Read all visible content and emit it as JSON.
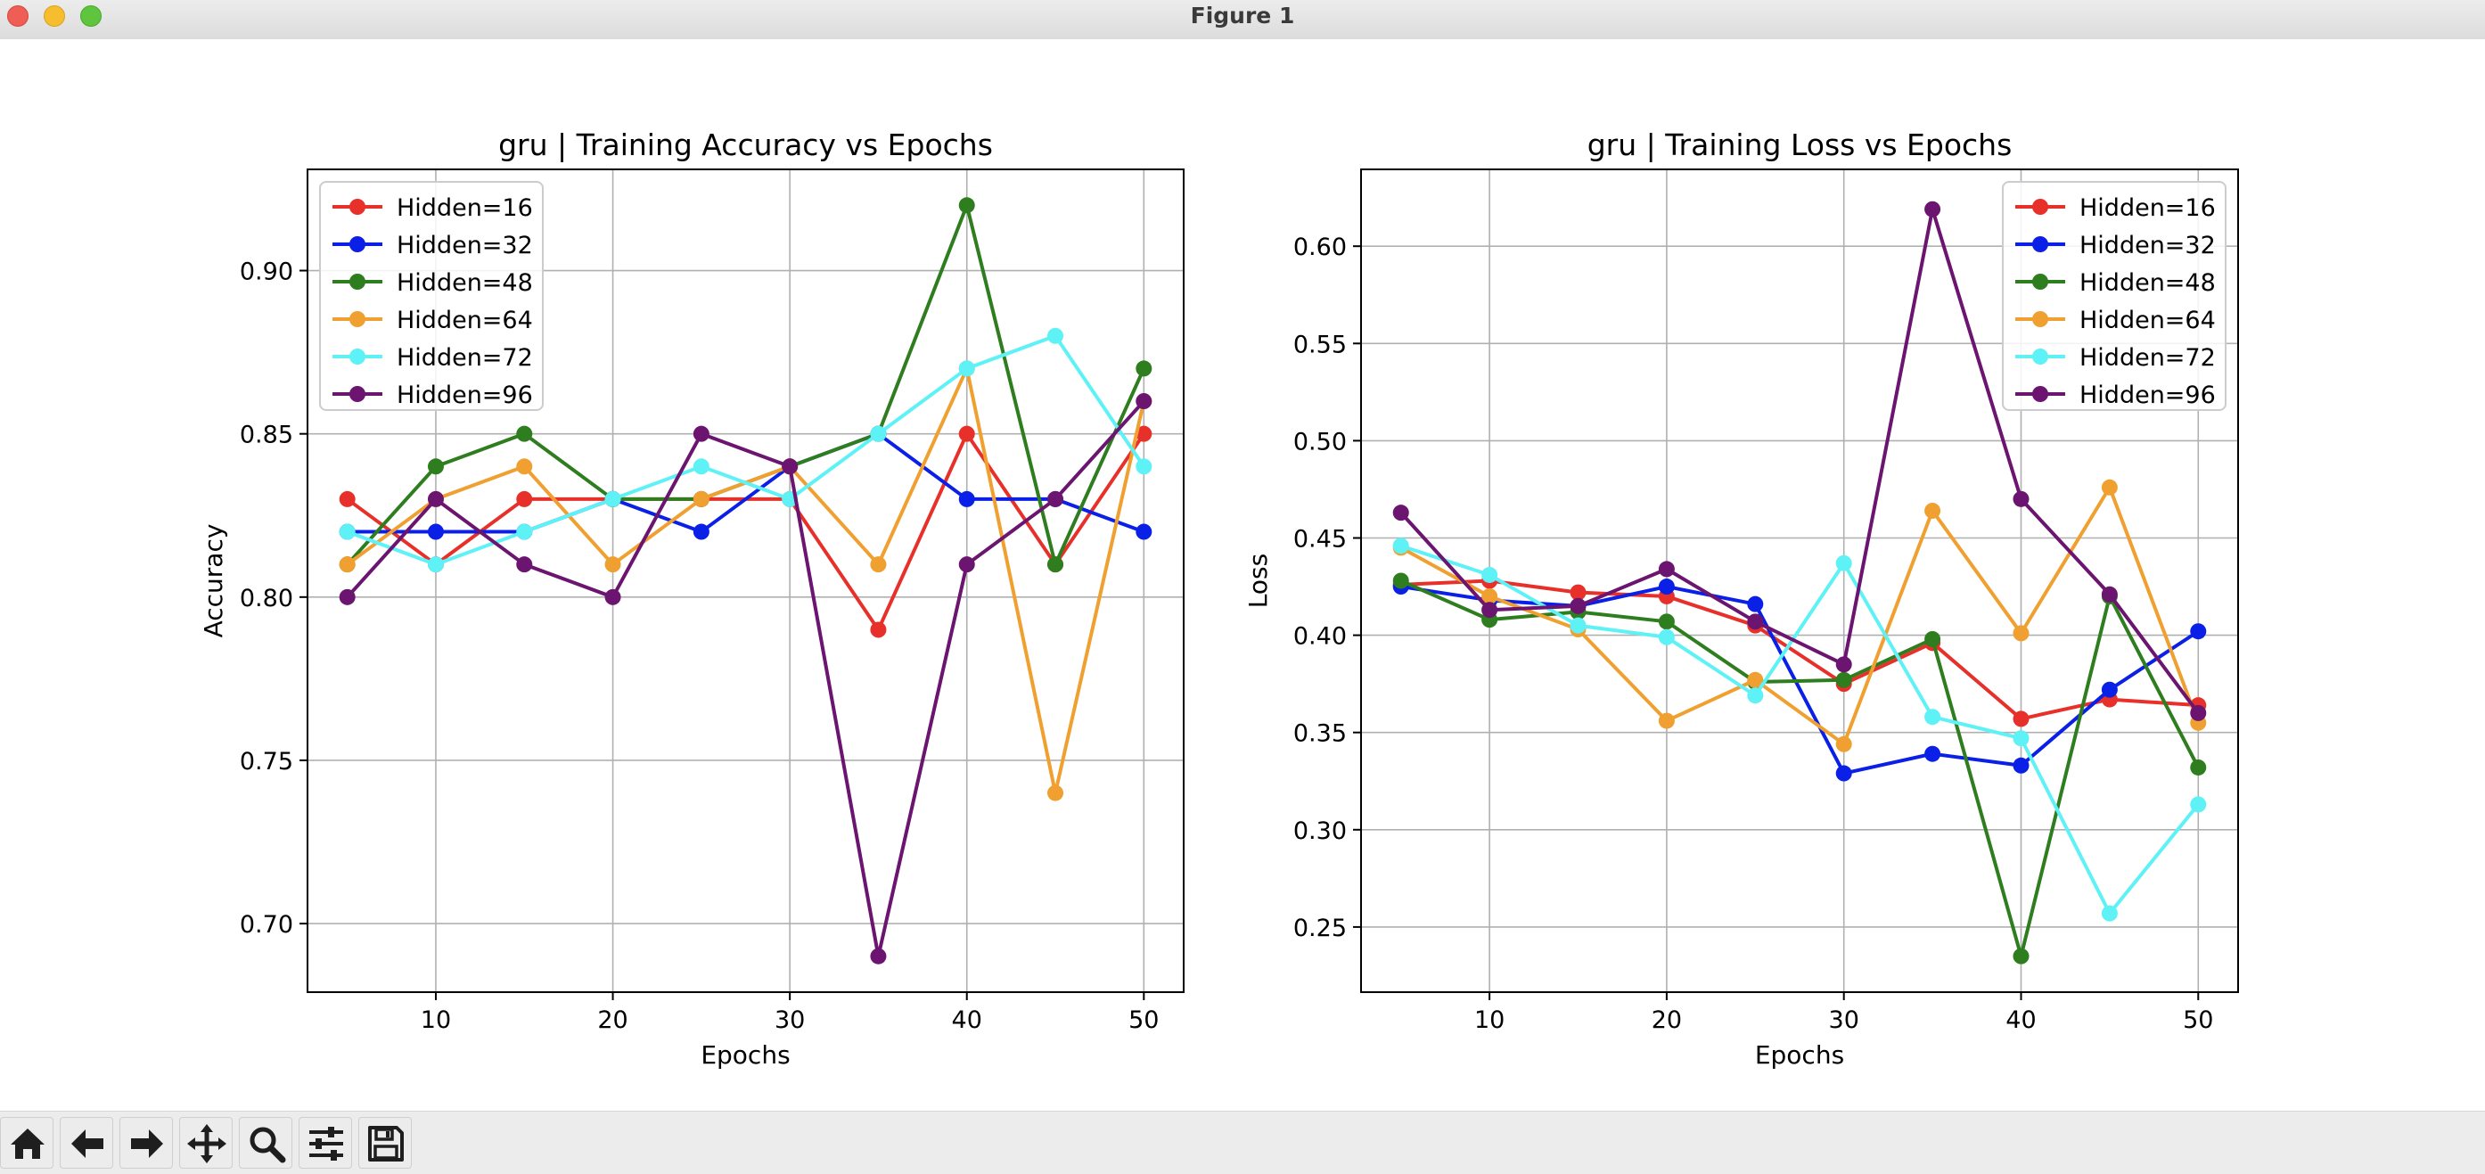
{
  "window": {
    "title": "Figure 1"
  },
  "toolbar": {
    "buttons": [
      {
        "id": "home",
        "icon": "home-icon"
      },
      {
        "id": "back",
        "icon": "arrow-left-icon"
      },
      {
        "id": "forward",
        "icon": "arrow-right-icon"
      },
      {
        "id": "pan",
        "icon": "move-icon"
      },
      {
        "id": "zoom",
        "icon": "search-icon"
      },
      {
        "id": "configure",
        "icon": "sliders-icon"
      },
      {
        "id": "save",
        "icon": "save-icon"
      }
    ]
  },
  "chart_data": [
    {
      "type": "line",
      "title": "gru | Training Accuracy vs Epochs",
      "xlabel": "Epochs",
      "ylabel": "Accuracy",
      "x": [
        5,
        10,
        15,
        20,
        25,
        30,
        35,
        40,
        45,
        50
      ],
      "xticks": [
        "10",
        "20",
        "30",
        "40",
        "50"
      ],
      "yticks": [
        "0.70",
        "0.75",
        "0.80",
        "0.85",
        "0.90"
      ],
      "xlim": [
        2.75,
        52.25
      ],
      "ylim": [
        0.679,
        0.931
      ],
      "grid": true,
      "legend": "upper left",
      "series": [
        {
          "name": "Hidden=16",
          "color": "#e8302a",
          "values": [
            0.83,
            0.81,
            0.83,
            0.83,
            0.83,
            0.83,
            0.79,
            0.85,
            0.81,
            0.85
          ]
        },
        {
          "name": "Hidden=32",
          "color": "#0a20e6",
          "values": [
            0.82,
            0.82,
            0.82,
            0.83,
            0.82,
            0.84,
            0.85,
            0.83,
            0.83,
            0.82
          ]
        },
        {
          "name": "Hidden=48",
          "color": "#2e7d1e",
          "values": [
            0.81,
            0.84,
            0.85,
            0.83,
            0.83,
            0.84,
            0.85,
            0.92,
            0.81,
            0.87
          ]
        },
        {
          "name": "Hidden=64",
          "color": "#f0a030",
          "values": [
            0.81,
            0.83,
            0.84,
            0.81,
            0.83,
            0.84,
            0.81,
            0.87,
            0.74,
            0.86
          ]
        },
        {
          "name": "Hidden=72",
          "color": "#5ef2f7",
          "values": [
            0.82,
            0.81,
            0.82,
            0.83,
            0.84,
            0.83,
            0.85,
            0.87,
            0.88,
            0.84
          ]
        },
        {
          "name": "Hidden=96",
          "color": "#6b1470",
          "values": [
            0.8,
            0.83,
            0.81,
            0.8,
            0.85,
            0.84,
            0.69,
            0.81,
            0.83,
            0.86
          ]
        }
      ]
    },
    {
      "type": "line",
      "title": "gru | Training Loss vs Epochs",
      "xlabel": "Epochs",
      "ylabel": "Loss",
      "x": [
        5,
        10,
        15,
        20,
        25,
        30,
        35,
        40,
        45,
        50
      ],
      "xticks": [
        "10",
        "20",
        "30",
        "40",
        "50"
      ],
      "yticks": [
        "0.25",
        "0.30",
        "0.35",
        "0.40",
        "0.45",
        "0.50",
        "0.55",
        "0.60"
      ],
      "xlim": [
        2.75,
        52.25
      ],
      "ylim": [
        0.2165,
        0.6395
      ],
      "grid": true,
      "legend": "upper right",
      "series": [
        {
          "name": "Hidden=16",
          "color": "#e8302a",
          "values": [
            0.426,
            0.428,
            0.422,
            0.42,
            0.405,
            0.375,
            0.396,
            0.357,
            0.367,
            0.364
          ]
        },
        {
          "name": "Hidden=32",
          "color": "#0a20e6",
          "values": [
            0.425,
            0.418,
            0.415,
            0.425,
            0.416,
            0.329,
            0.339,
            0.333,
            0.372,
            0.402
          ]
        },
        {
          "name": "Hidden=48",
          "color": "#2e7d1e",
          "values": [
            0.428,
            0.408,
            0.412,
            0.407,
            0.376,
            0.377,
            0.398,
            0.235,
            0.42,
            0.332
          ]
        },
        {
          "name": "Hidden=64",
          "color": "#f0a030",
          "values": [
            0.445,
            0.42,
            0.403,
            0.356,
            0.377,
            0.344,
            0.464,
            0.401,
            0.476,
            0.355
          ]
        },
        {
          "name": "Hidden=72",
          "color": "#5ef2f7",
          "values": [
            0.446,
            0.431,
            0.405,
            0.399,
            0.369,
            0.437,
            0.358,
            0.347,
            0.257,
            0.313
          ]
        },
        {
          "name": "Hidden=96",
          "color": "#6b1470",
          "values": [
            0.463,
            0.413,
            0.415,
            0.434,
            0.407,
            0.385,
            0.619,
            0.47,
            0.421,
            0.36
          ]
        }
      ]
    }
  ]
}
